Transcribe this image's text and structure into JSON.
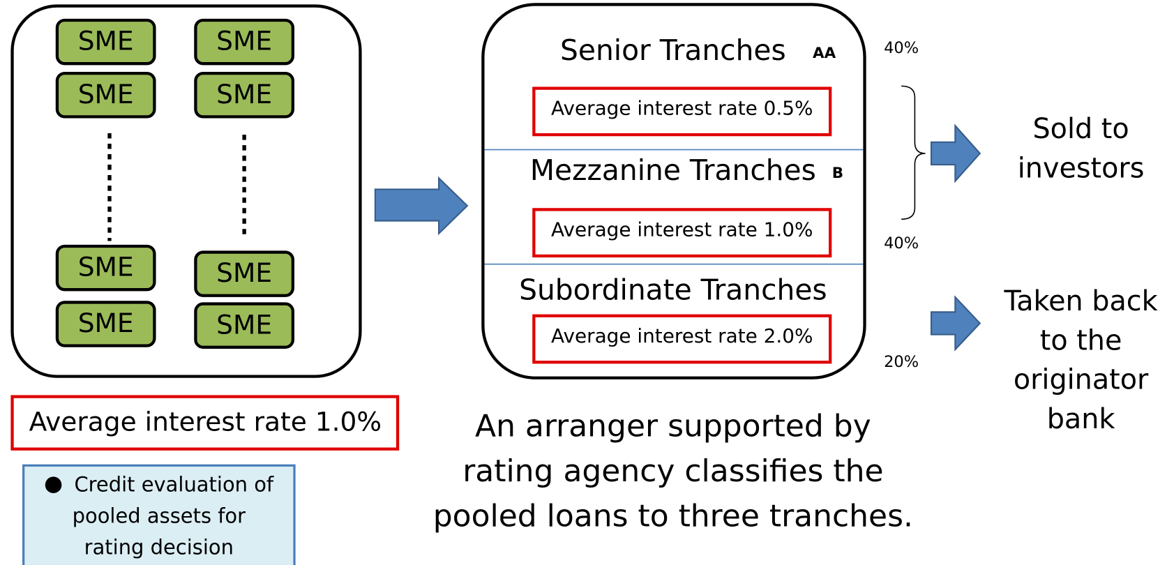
{
  "pool": {
    "items": [
      "SME",
      "SME",
      "SME",
      "SME",
      "SME",
      "SME",
      "SME",
      "SME"
    ],
    "rate": "Average interest rate 1.0%"
  },
  "note": {
    "lines": [
      "Credit evaluation of",
      "pooled assets for",
      "rating decision"
    ]
  },
  "tranches": [
    {
      "name": "Senior    Tranches",
      "rating": "AA",
      "rate": "Average interest rate 0.5%",
      "share": "40%"
    },
    {
      "name": "Mezzanine Tranches",
      "rating": "B",
      "rate": "Average interest rate 1.0%",
      "share": "40%"
    },
    {
      "name": "Subordinate Tranches",
      "rate": "Average interest rate 2.0%",
      "share": "20%"
    }
  ],
  "caption": {
    "lines": [
      "An arranger supported by",
      "rating agency classifies the",
      "pooled loans to three tranches."
    ]
  },
  "outcomes": [
    {
      "lines": [
        "Sold to",
        "investors"
      ]
    },
    {
      "lines": [
        "Taken back",
        "to the",
        "originator",
        "bank"
      ]
    }
  ]
}
